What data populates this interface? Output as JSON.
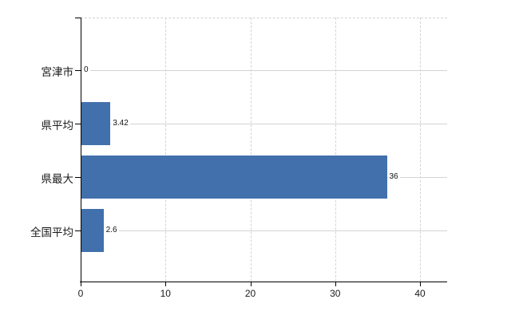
{
  "chart": {
    "background": "#ffffff",
    "axis_color": "#000000",
    "grid_color": "#d4d4d4",
    "bar_color": "#4170ac",
    "text_color": "#1a1a1a"
  },
  "chart_data": {
    "type": "bar",
    "orientation": "horizontal",
    "title": "",
    "xlabel": "",
    "ylabel": "",
    "categories": [
      "宮津市",
      "県平均",
      "県最大",
      "全国平均"
    ],
    "values": [
      0,
      3.42,
      36,
      2.6
    ],
    "value_labels": [
      "0",
      "3.42",
      "36",
      "2.6"
    ],
    "x_ticks": [
      "0",
      "10",
      "20",
      "30",
      "40"
    ],
    "x_tick_values": [
      0,
      10,
      20,
      30,
      40
    ],
    "xlim": [
      0,
      43.2
    ],
    "grid": true,
    "legend": false
  }
}
